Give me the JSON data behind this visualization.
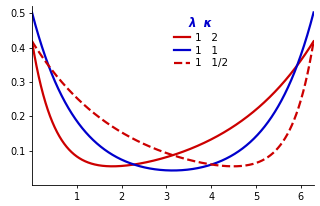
{
  "xlim": [
    0,
    6.283185307
  ],
  "ylim": [
    0,
    0.52
  ],
  "xticks": [
    1,
    2,
    3,
    4,
    5,
    6
  ],
  "yticks": [
    0.1,
    0.2,
    0.3,
    0.4,
    0.5
  ],
  "legend_header": "λ  κ",
  "curves": [
    {
      "label": "1   2",
      "color": "#cc0000",
      "linestyle": "solid",
      "lambda": 1,
      "kappa": 2
    },
    {
      "label": "1   1",
      "color": "#0000cc",
      "linestyle": "solid",
      "lambda": 1,
      "kappa": 1
    },
    {
      "label": "1   1/2",
      "color": "#cc0000",
      "linestyle": "dashed",
      "lambda": 1,
      "kappa": 0.5
    }
  ],
  "background": "#ffffff",
  "linewidth": 1.6
}
